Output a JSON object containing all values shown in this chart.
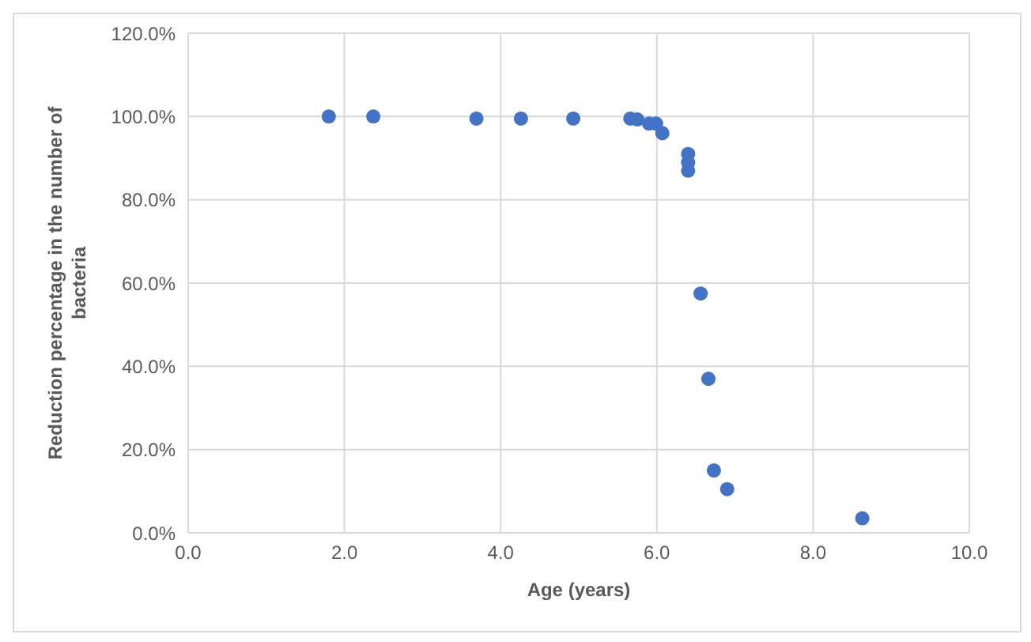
{
  "chart_data": {
    "type": "scatter",
    "xlabel": "Age (years)",
    "ylabel": "Reduction percentage in the number of bacteria",
    "series": [
      {
        "color": "#4472c4",
        "x": [
          1.8,
          2.37,
          3.69,
          4.26,
          4.93,
          5.66,
          5.75,
          5.9,
          5.99,
          6.07,
          6.4,
          6.4,
          6.4,
          6.56,
          6.66,
          6.73,
          6.9,
          8.63
        ],
        "values": [
          100,
          100,
          99.5,
          99.5,
          99.5,
          99.5,
          99.3,
          98.3,
          98.3,
          96,
          91,
          89,
          87,
          57.5,
          37,
          15,
          10.5,
          3.5
        ]
      }
    ],
    "xlim": [
      0,
      10
    ],
    "xticks": [
      {
        "value": 0,
        "label": "0.0"
      },
      {
        "value": 2,
        "label": "2.0"
      },
      {
        "value": 4,
        "label": "4.0"
      },
      {
        "value": 6,
        "label": "6.0"
      },
      {
        "value": 8,
        "label": "8.0"
      },
      {
        "value": 10,
        "label": "10.0"
      }
    ],
    "ylim": [
      0,
      120
    ],
    "yticks": [
      {
        "value": 0,
        "label": "0.0%"
      },
      {
        "value": 20,
        "label": "20.0%"
      },
      {
        "value": 40,
        "label": "40.0%"
      },
      {
        "value": 60,
        "label": "60.0%"
      },
      {
        "value": 80,
        "label": "80.0%"
      },
      {
        "value": 100,
        "label": "100.0%"
      },
      {
        "value": 120,
        "label": "120.0%"
      }
    ],
    "grid": true,
    "marker": "circle"
  }
}
